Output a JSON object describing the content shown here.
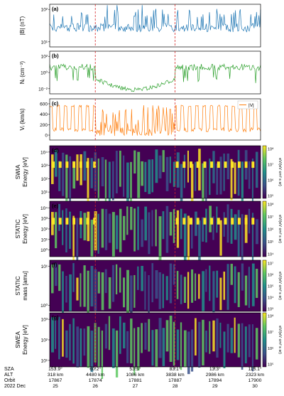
{
  "colors": {
    "b": "#1f77b4",
    "n": "#2ca02c",
    "v": "#ff7f0e",
    "boundary": "#d62728"
  },
  "chart_data": [
    {
      "type": "line",
      "panel": "a",
      "ylabel": "|B| [nT]",
      "yscale": "log",
      "yticks": [
        "10¹",
        "10²"
      ],
      "ylim": [
        3,
        300
      ],
      "series": [
        {
          "name": "",
          "approx_level": [
            25,
            50
          ]
        }
      ]
    },
    {
      "type": "line",
      "panel": "b",
      "ylabel": "Nᵢ (cm⁻³)",
      "yscale": "log",
      "yticks": [
        "10⁻²",
        "10⁰",
        "10²"
      ],
      "ylim": [
        0.01,
        100
      ]
    },
    {
      "type": "line",
      "panel": "c",
      "ylabel": "Vᵢ (km/s)",
      "yticks": [
        "0",
        "200",
        "400",
        "600"
      ],
      "ylim": [
        0,
        600
      ],
      "legend": "|V|",
      "legend_loc": "top-right"
    },
    {
      "type": "heatmap",
      "panel": "d",
      "ylabel": [
        "SWIA",
        "Energy [eV]"
      ],
      "yticks": [
        "10¹",
        "10²",
        "10³",
        "10⁴"
      ],
      "cbar_label": "eV/(eV cm² s sr)",
      "cbar_ticks": [
        "10⁵",
        "10⁶",
        "10⁷",
        "10⁸"
      ]
    },
    {
      "type": "heatmap",
      "panel": "e",
      "ylabel": [
        "STATIC",
        "Energy [eV]"
      ],
      "yticks": [
        "10⁰",
        "10¹",
        "10²",
        "10³",
        "10⁴"
      ],
      "cbar_label": "eV/(eV cm² s sr)",
      "cbar_ticks": [
        "10⁴",
        "10⁵",
        "10⁶",
        "10⁷",
        "10⁸"
      ]
    },
    {
      "type": "heatmap",
      "panel": "f",
      "ylabel": [
        "STATIC",
        "mass [amu]"
      ],
      "yticks": [
        "10⁰",
        "10¹"
      ],
      "cbar_label": "eV/(eV cm² s sr)",
      "cbar_ticks": [
        "10³",
        "10⁴",
        "10⁵",
        "10⁶",
        "10⁷"
      ]
    },
    {
      "type": "heatmap",
      "panel": "g",
      "ylabel": [
        "SWEA",
        "Energy [eV]"
      ],
      "yticks": [
        "10¹",
        "10²",
        "10³"
      ],
      "cbar_label": "eV/(eV cm² s sr)",
      "cbar_ticks": [
        "10⁵",
        "10⁶",
        "10⁷",
        "10⁸"
      ]
    }
  ],
  "panels": [
    {
      "tag": "(a)",
      "ylab": "|B| (nT)",
      "ticks": [
        "10²",
        "10¹"
      ]
    },
    {
      "tag": "(b)",
      "ylab": "Nᵢ (cm⁻³)",
      "ticks": [
        "10²",
        "10⁰",
        "10⁻²"
      ]
    },
    {
      "tag": "(c)",
      "ylab": "Vᵢ (km/s)",
      "ticks": [
        "600",
        "400",
        "200",
        "0"
      ],
      "legend": "|V|"
    },
    {
      "tag": "(d)",
      "ylab1": "SWIA",
      "ylab2": "Energy [eV]",
      "ticks": [
        "10⁴",
        "10³",
        "10²",
        "10¹"
      ],
      "cbar": [
        "10⁸",
        "10⁷",
        "10⁶",
        "10⁵"
      ],
      "cblabel": "eV/(eV cm² s sr)"
    },
    {
      "tag": "(e)",
      "ylab1": "STATIC",
      "ylab2": "Energy [eV]",
      "ticks": [
        "10⁴",
        "10³",
        "10²",
        "10¹",
        "10⁰"
      ],
      "cbar": [
        "10⁸",
        "10⁷",
        "10⁶",
        "10⁵",
        "10⁴"
      ],
      "cblabel": "eV/(eV cm² s sr)"
    },
    {
      "tag": "(f)",
      "ylab1": "STATIC",
      "ylab2": "mass [amu]",
      "ticks": [
        "10¹",
        "10⁰"
      ],
      "cbar": [
        "10⁷",
        "10⁶",
        "10⁵",
        "10⁴",
        "10³"
      ],
      "cblabel": "eV/(eV cm² s sr)"
    },
    {
      "tag": "(g)",
      "ylab1": "SWEA",
      "ylab2": "Energy [eV]",
      "ticks": [
        "10³",
        "10²",
        "10¹"
      ],
      "cbar": [
        "10⁸",
        "10⁷",
        "10⁶",
        "10⁵"
      ],
      "cblabel": "eV/(eV cm² s sr)"
    }
  ],
  "xaxis": {
    "row_labels": [
      "SZA",
      "ALT",
      "Orbit",
      "2022 Dec"
    ],
    "ticks": [
      {
        "sza": "153.9°",
        "alt": "318 km",
        "orbit": "17867",
        "day": "25"
      },
      {
        "sza": "60.2°",
        "alt": "4480 km",
        "orbit": "17874",
        "day": "26"
      },
      {
        "sza": "53.5°",
        "alt": "1086 km",
        "orbit": "17881",
        "day": "27"
      },
      {
        "sza": "83.1°",
        "alt": "3838 km",
        "orbit": "17887",
        "day": "28"
      },
      {
        "sza": "13.3°",
        "alt": "2986 km",
        "orbit": "17894",
        "day": "29"
      },
      {
        "sza": "115.1°",
        "alt": "2323 km",
        "orbit": "17900",
        "day": "30"
      }
    ]
  },
  "boundaries_days": [
    26.0,
    28.0
  ]
}
